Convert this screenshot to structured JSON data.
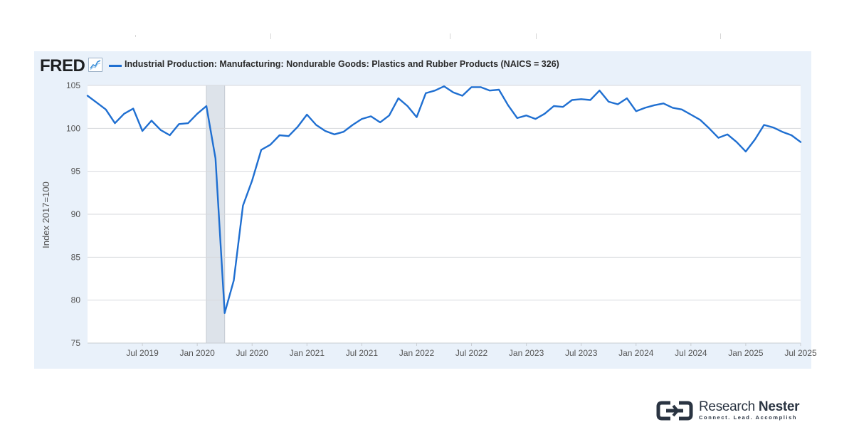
{
  "legend": {
    "brand": "FRED",
    "series_label": "Industrial Production: Manufacturing: Nondurable Goods: Plastics and Rubber Products (NAICS = 326)"
  },
  "watermark": {
    "name_part1": "Research",
    "name_part2": "Nester",
    "tagline": "Connect. Lead. Accomplish"
  },
  "colors": {
    "series": "#1f6fd1",
    "recession_band": "#dde3ea",
    "panel_background": "#e9f1fa",
    "grid": "#d7d9dd"
  },
  "chart_data": {
    "type": "line",
    "title": "",
    "xlabel": "",
    "ylabel": "Index 2017=100",
    "ylim": [
      75,
      105
    ],
    "yticks": [
      75,
      80,
      85,
      90,
      95,
      100,
      105
    ],
    "xlim": [
      "2019-01",
      "2025-07"
    ],
    "xticks": [
      {
        "date": "2019-07",
        "label": "Jul 2019"
      },
      {
        "date": "2020-01",
        "label": "Jan 2020"
      },
      {
        "date": "2020-07",
        "label": "Jul 2020"
      },
      {
        "date": "2021-01",
        "label": "Jan 2021"
      },
      {
        "date": "2021-07",
        "label": "Jul 2021"
      },
      {
        "date": "2022-01",
        "label": "Jan 2022"
      },
      {
        "date": "2022-07",
        "label": "Jul 2022"
      },
      {
        "date": "2023-01",
        "label": "Jan 2023"
      },
      {
        "date": "2023-07",
        "label": "Jul 2023"
      },
      {
        "date": "2024-01",
        "label": "Jan 2024"
      },
      {
        "date": "2024-07",
        "label": "Jul 2024"
      },
      {
        "date": "2025-01",
        "label": "Jan 2025"
      },
      {
        "date": "2025-07",
        "label": "Jul 2025"
      }
    ],
    "recession_shading": {
      "start": "2020-02",
      "end": "2020-04"
    },
    "grid": "horizontal",
    "series": [
      {
        "name": "Industrial Production: Manufacturing: Nondurable Goods: Plastics and Rubber Products (NAICS = 326)",
        "points": [
          {
            "x": "2019-01",
            "y": 103.8
          },
          {
            "x": "2019-02",
            "y": 103.0
          },
          {
            "x": "2019-03",
            "y": 102.2
          },
          {
            "x": "2019-04",
            "y": 100.6
          },
          {
            "x": "2019-05",
            "y": 101.7
          },
          {
            "x": "2019-06",
            "y": 102.3
          },
          {
            "x": "2019-07",
            "y": 99.7
          },
          {
            "x": "2019-08",
            "y": 100.9
          },
          {
            "x": "2019-09",
            "y": 99.8
          },
          {
            "x": "2019-10",
            "y": 99.2
          },
          {
            "x": "2019-11",
            "y": 100.5
          },
          {
            "x": "2019-12",
            "y": 100.6
          },
          {
            "x": "2020-01",
            "y": 101.7
          },
          {
            "x": "2020-02",
            "y": 102.6
          },
          {
            "x": "2020-03",
            "y": 96.5
          },
          {
            "x": "2020-04",
            "y": 78.5
          },
          {
            "x": "2020-05",
            "y": 82.3
          },
          {
            "x": "2020-06",
            "y": 91.0
          },
          {
            "x": "2020-07",
            "y": 93.9
          },
          {
            "x": "2020-08",
            "y": 97.5
          },
          {
            "x": "2020-09",
            "y": 98.1
          },
          {
            "x": "2020-10",
            "y": 99.2
          },
          {
            "x": "2020-11",
            "y": 99.1
          },
          {
            "x": "2020-12",
            "y": 100.2
          },
          {
            "x": "2021-01",
            "y": 101.6
          },
          {
            "x": "2021-02",
            "y": 100.4
          },
          {
            "x": "2021-03",
            "y": 99.7
          },
          {
            "x": "2021-04",
            "y": 99.3
          },
          {
            "x": "2021-05",
            "y": 99.6
          },
          {
            "x": "2021-06",
            "y": 100.4
          },
          {
            "x": "2021-07",
            "y": 101.1
          },
          {
            "x": "2021-08",
            "y": 101.4
          },
          {
            "x": "2021-09",
            "y": 100.7
          },
          {
            "x": "2021-10",
            "y": 101.5
          },
          {
            "x": "2021-11",
            "y": 103.5
          },
          {
            "x": "2021-12",
            "y": 102.6
          },
          {
            "x": "2022-01",
            "y": 101.3
          },
          {
            "x": "2022-02",
            "y": 104.1
          },
          {
            "x": "2022-03",
            "y": 104.4
          },
          {
            "x": "2022-04",
            "y": 104.9
          },
          {
            "x": "2022-05",
            "y": 104.2
          },
          {
            "x": "2022-06",
            "y": 103.8
          },
          {
            "x": "2022-07",
            "y": 104.8
          },
          {
            "x": "2022-08",
            "y": 104.8
          },
          {
            "x": "2022-09",
            "y": 104.4
          },
          {
            "x": "2022-10",
            "y": 104.5
          },
          {
            "x": "2022-11",
            "y": 102.7
          },
          {
            "x": "2022-12",
            "y": 101.2
          },
          {
            "x": "2023-01",
            "y": 101.5
          },
          {
            "x": "2023-02",
            "y": 101.1
          },
          {
            "x": "2023-03",
            "y": 101.7
          },
          {
            "x": "2023-04",
            "y": 102.6
          },
          {
            "x": "2023-05",
            "y": 102.5
          },
          {
            "x": "2023-06",
            "y": 103.3
          },
          {
            "x": "2023-07",
            "y": 103.4
          },
          {
            "x": "2023-08",
            "y": 103.3
          },
          {
            "x": "2023-09",
            "y": 104.4
          },
          {
            "x": "2023-10",
            "y": 103.1
          },
          {
            "x": "2023-11",
            "y": 102.8
          },
          {
            "x": "2023-12",
            "y": 103.5
          },
          {
            "x": "2024-01",
            "y": 102.0
          },
          {
            "x": "2024-02",
            "y": 102.4
          },
          {
            "x": "2024-03",
            "y": 102.7
          },
          {
            "x": "2024-04",
            "y": 102.9
          },
          {
            "x": "2024-05",
            "y": 102.4
          },
          {
            "x": "2024-06",
            "y": 102.2
          },
          {
            "x": "2024-07",
            "y": 101.6
          },
          {
            "x": "2024-08",
            "y": 101.0
          },
          {
            "x": "2024-09",
            "y": 100.0
          },
          {
            "x": "2024-10",
            "y": 98.9
          },
          {
            "x": "2024-11",
            "y": 99.3
          },
          {
            "x": "2024-12",
            "y": 98.4
          },
          {
            "x": "2025-01",
            "y": 97.3
          },
          {
            "x": "2025-02",
            "y": 98.7
          },
          {
            "x": "2025-03",
            "y": 100.4
          },
          {
            "x": "2025-04",
            "y": 100.1
          },
          {
            "x": "2025-05",
            "y": 99.6
          },
          {
            "x": "2025-06",
            "y": 99.2
          },
          {
            "x": "2025-07",
            "y": 98.4
          }
        ]
      }
    ]
  }
}
